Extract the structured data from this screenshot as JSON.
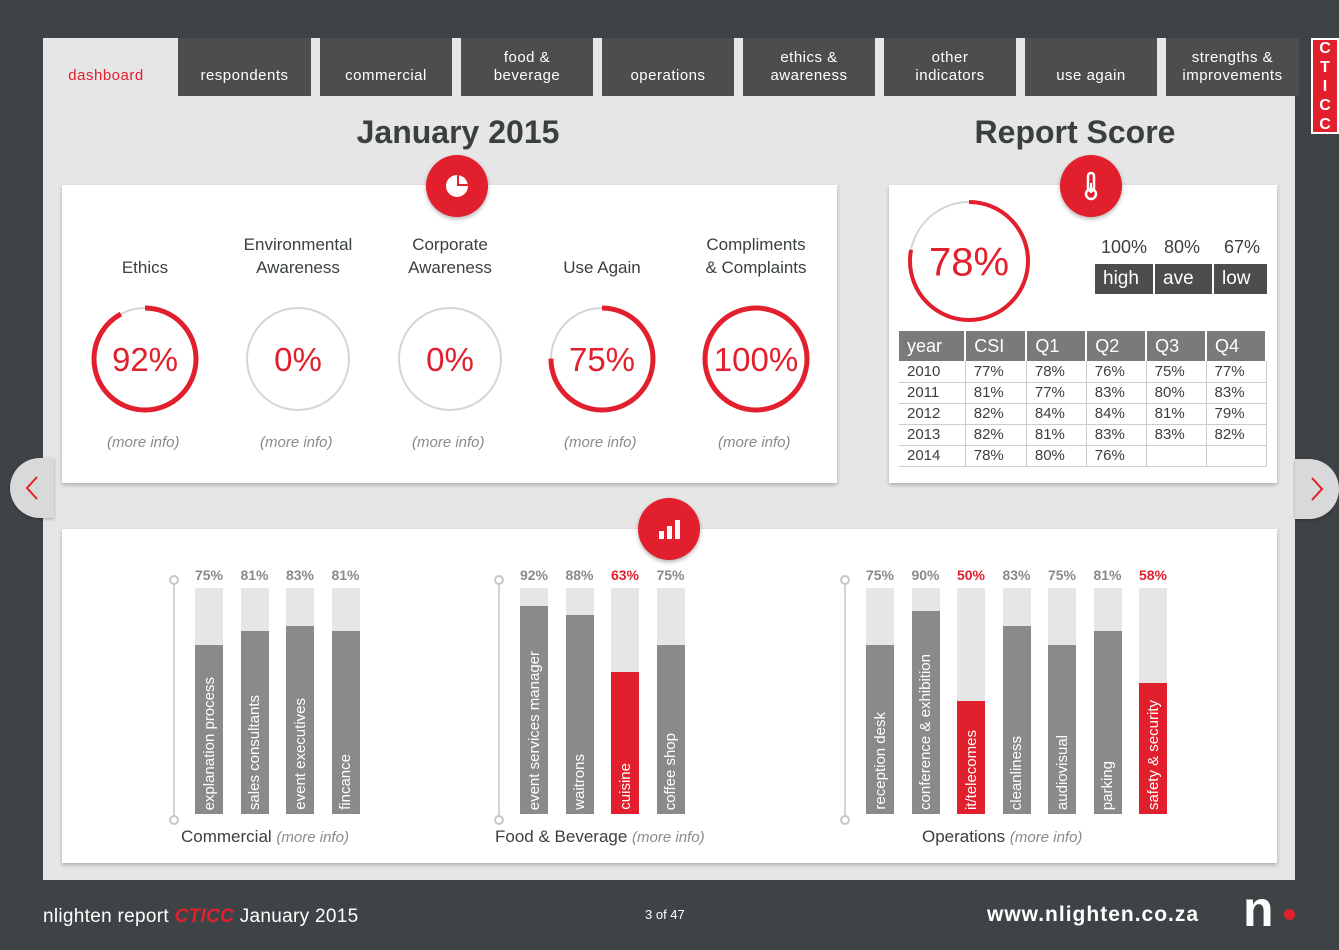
{
  "tabs": [
    {
      "label": "dashboard",
      "active": true
    },
    {
      "label": "respondents"
    },
    {
      "label": "commercial"
    },
    {
      "label": "food &\nbeverage"
    },
    {
      "label": "operations"
    },
    {
      "label": "ethics &\nawareness"
    },
    {
      "label": "other\nindicators"
    },
    {
      "label": "use again"
    },
    {
      "label": "strengths &\nimprovements"
    }
  ],
  "badge": [
    "C",
    "T",
    "I",
    "C",
    "C"
  ],
  "colors": {
    "accent": "#e21f2c",
    "dark": "#3e4446",
    "bar": "#8a8a8a"
  },
  "month": {
    "title": "January 2015",
    "icon": "pie-chart-icon",
    "metrics": [
      {
        "label": "Ethics",
        "value": 92,
        "display": "92%",
        "more": "(more info)"
      },
      {
        "label": "Environmental\nAwareness",
        "value": 0,
        "display": "0%",
        "more": "(more info)"
      },
      {
        "label": "Corporate\nAwareness",
        "value": 0,
        "display": "0%",
        "more": "(more info)"
      },
      {
        "label": "Use Again",
        "value": 75,
        "display": "75%",
        "more": "(more info)"
      },
      {
        "label": "Compliments\n& Complaints",
        "value": 100,
        "display": "100%",
        "more": "(more info)"
      }
    ]
  },
  "score": {
    "title": "Report Score",
    "icon": "thermometer-icon",
    "value": 78,
    "display": "78%",
    "legend": [
      {
        "value": "100%",
        "label": "high"
      },
      {
        "value": "80%",
        "label": "ave"
      },
      {
        "value": "67%",
        "label": "low"
      }
    ],
    "table": {
      "headers": [
        "year",
        "CSI",
        "Q1",
        "Q2",
        "Q3",
        "Q4"
      ],
      "rows": [
        [
          "2010",
          "77%",
          "78%",
          "76%",
          "75%",
          "77%"
        ],
        [
          "2011",
          "81%",
          "77%",
          "83%",
          "80%",
          "83%"
        ],
        [
          "2012",
          "82%",
          "84%",
          "84%",
          "81%",
          "79%"
        ],
        [
          "2013",
          "82%",
          "81%",
          "83%",
          "83%",
          "82%"
        ],
        [
          "2014",
          "78%",
          "80%",
          "76%",
          "",
          ""
        ]
      ]
    }
  },
  "bars_icon": "bar-chart-icon",
  "groups": [
    {
      "title": "Commercial",
      "more": "(more info)",
      "bars": [
        {
          "label": "explanation process",
          "value": 75,
          "display": "75%",
          "red": false
        },
        {
          "label": "sales consultants",
          "value": 81,
          "display": "81%",
          "red": false
        },
        {
          "label": "event executives",
          "value": 83,
          "display": "83%",
          "red": false
        },
        {
          "label": "fincance",
          "value": 81,
          "display": "81%",
          "red": false
        }
      ]
    },
    {
      "title": "Food & Beverage",
      "more": "(more info)",
      "bars": [
        {
          "label": "event services manager",
          "value": 92,
          "display": "92%",
          "red": false
        },
        {
          "label": "waitrons",
          "value": 88,
          "display": "88%",
          "red": false
        },
        {
          "label": "cuisine",
          "value": 63,
          "display": "63%",
          "red": true
        },
        {
          "label": "coffee shop",
          "value": 75,
          "display": "75%",
          "red": false
        }
      ]
    },
    {
      "title": "Operations",
      "more": "(more info)",
      "bars": [
        {
          "label": "reception desk",
          "value": 75,
          "display": "75%",
          "red": false
        },
        {
          "label": "conference & exhibition",
          "value": 90,
          "display": "90%",
          "red": false
        },
        {
          "label": "it/telecomes",
          "value": 50,
          "display": "50%",
          "red": true
        },
        {
          "label": "cleanliness",
          "value": 83,
          "display": "83%",
          "red": false
        },
        {
          "label": "audiovisual",
          "value": 75,
          "display": "75%",
          "red": false
        },
        {
          "label": "parking",
          "value": 81,
          "display": "81%",
          "red": false
        },
        {
          "label": "safety & security",
          "value": 58,
          "display": "58%",
          "red": true
        }
      ]
    }
  ],
  "footer": {
    "report": "nlighten report",
    "brand": "CTICC",
    "month": "January 2015",
    "page": "3 of 47",
    "url": "www.nlighten.co.za",
    "logo": "n"
  }
}
